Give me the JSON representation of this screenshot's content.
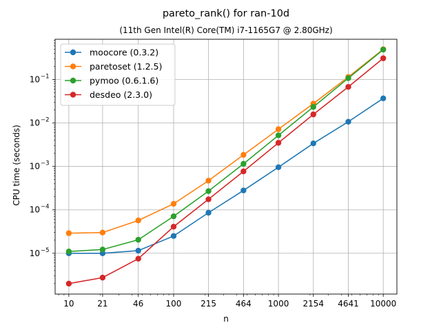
{
  "chart_data": {
    "type": "line",
    "title": "pareto_rank() for ran-10d",
    "subtitle": "(11th Gen Intel(R) Core(TM) i7-1165G7 @ 2.80GHz)",
    "xlabel": "n",
    "ylabel": "CPU time (seconds)",
    "x_scale": "log",
    "y_scale": "log",
    "grid": true,
    "legend_position": "upper-left",
    "x": [
      10,
      21,
      46,
      100,
      215,
      464,
      1000,
      2154,
      4641,
      10000
    ],
    "x_tick_labels": [
      "10",
      "21",
      "46",
      "100",
      "215",
      "464",
      "1000",
      "2154",
      "4641",
      "10000"
    ],
    "xlim": [
      7.4,
      13500
    ],
    "ylim": [
      1.15e-06,
      0.85
    ],
    "y_ticks": [
      {
        "value": 1e-05,
        "base": "10",
        "exp": "−5"
      },
      {
        "value": 0.0001,
        "base": "10",
        "exp": "−4"
      },
      {
        "value": 0.001,
        "base": "10",
        "exp": "−3"
      },
      {
        "value": 0.01,
        "base": "10",
        "exp": "−2"
      },
      {
        "value": 0.1,
        "base": "10",
        "exp": "−1"
      }
    ],
    "series": [
      {
        "name": "moocore (0.3.2)",
        "color": "#1f77b4",
        "values": [
          1e-05,
          1e-05,
          1.15e-05,
          2.5e-05,
          8.6e-05,
          0.00028,
          0.00096,
          0.0034,
          0.0107,
          0.037
        ]
      },
      {
        "name": "paretoset (1.2.5)",
        "color": "#ff7f0e",
        "values": [
          2.9e-05,
          3e-05,
          5.7e-05,
          0.000138,
          0.00047,
          0.00185,
          0.0072,
          0.028,
          0.115,
          0.5
        ]
      },
      {
        "name": "pymoo (0.6.1.6)",
        "color": "#2ca02c",
        "values": [
          1.1e-05,
          1.22e-05,
          2.05e-05,
          7.1e-05,
          0.00027,
          0.00115,
          0.0052,
          0.0235,
          0.108,
          0.49
        ]
      },
      {
        "name": "desdeo (2.3.0)",
        "color": "#d62728",
        "values": [
          2e-06,
          2.75e-06,
          7.5e-06,
          4.1e-05,
          0.000175,
          0.00077,
          0.0035,
          0.0158,
          0.068,
          0.31
        ]
      }
    ]
  }
}
